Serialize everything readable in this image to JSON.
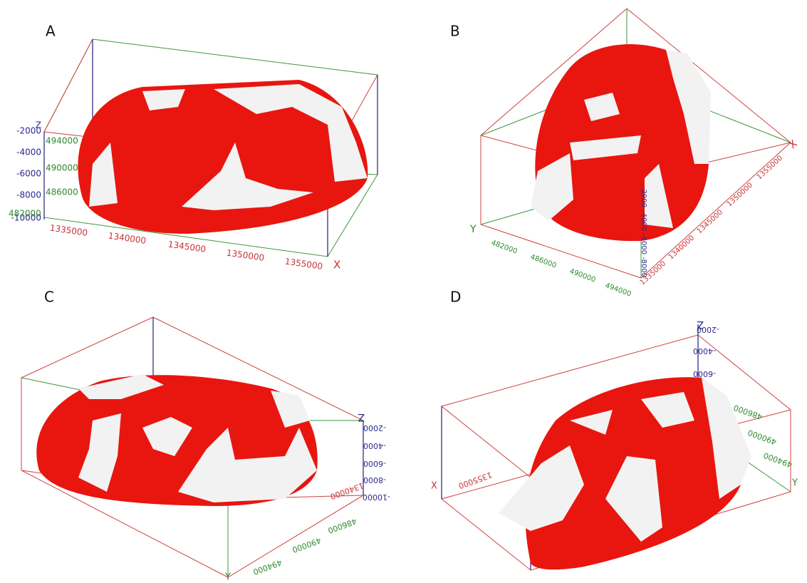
{
  "panels": [
    {
      "label": "A",
      "z_axis": {
        "name": "Z",
        "ticks": [
          "-2000",
          "-4000",
          "-6000",
          "-8000",
          "-10000"
        ]
      },
      "y_axis": {
        "ticks": [
          "494000",
          "490000",
          "486000",
          "482000"
        ]
      },
      "x_axis": {
        "name": "X",
        "ticks": [
          "1335000",
          "1340000",
          "1345000",
          "1350000",
          "1355000"
        ]
      }
    },
    {
      "label": "B",
      "y_axis": {
        "name": "Y",
        "ticks": [
          "482000",
          "486000",
          "490000",
          "494000"
        ]
      },
      "x_axis": {
        "name": "X",
        "ticks": [
          "1335000",
          "1340000",
          "1345000",
          "1350000",
          "1355000"
        ]
      },
      "z_axis": {
        "ticks": [
          "-2000",
          "-4000",
          "-6000",
          "-8000"
        ]
      }
    },
    {
      "label": "C",
      "z_axis": {
        "name": "Z",
        "ticks": [
          "-2000",
          "-4000",
          "-6000",
          "-8000",
          "-10000"
        ]
      },
      "y_axis": {
        "name": "Y",
        "ticks": [
          "486000",
          "490000",
          "494000"
        ]
      },
      "x_axis": {
        "ticks": [
          "1340000"
        ]
      }
    },
    {
      "label": "D",
      "z_axis": {
        "name": "Z",
        "ticks": [
          "-2000",
          "-4000",
          "-6000"
        ]
      },
      "x_axis": {
        "name": "X",
        "ticks": [
          "1355000"
        ]
      },
      "y_axis": {
        "name": "Y",
        "ticks": [
          "486000",
          "490000",
          "494000"
        ]
      }
    }
  ]
}
